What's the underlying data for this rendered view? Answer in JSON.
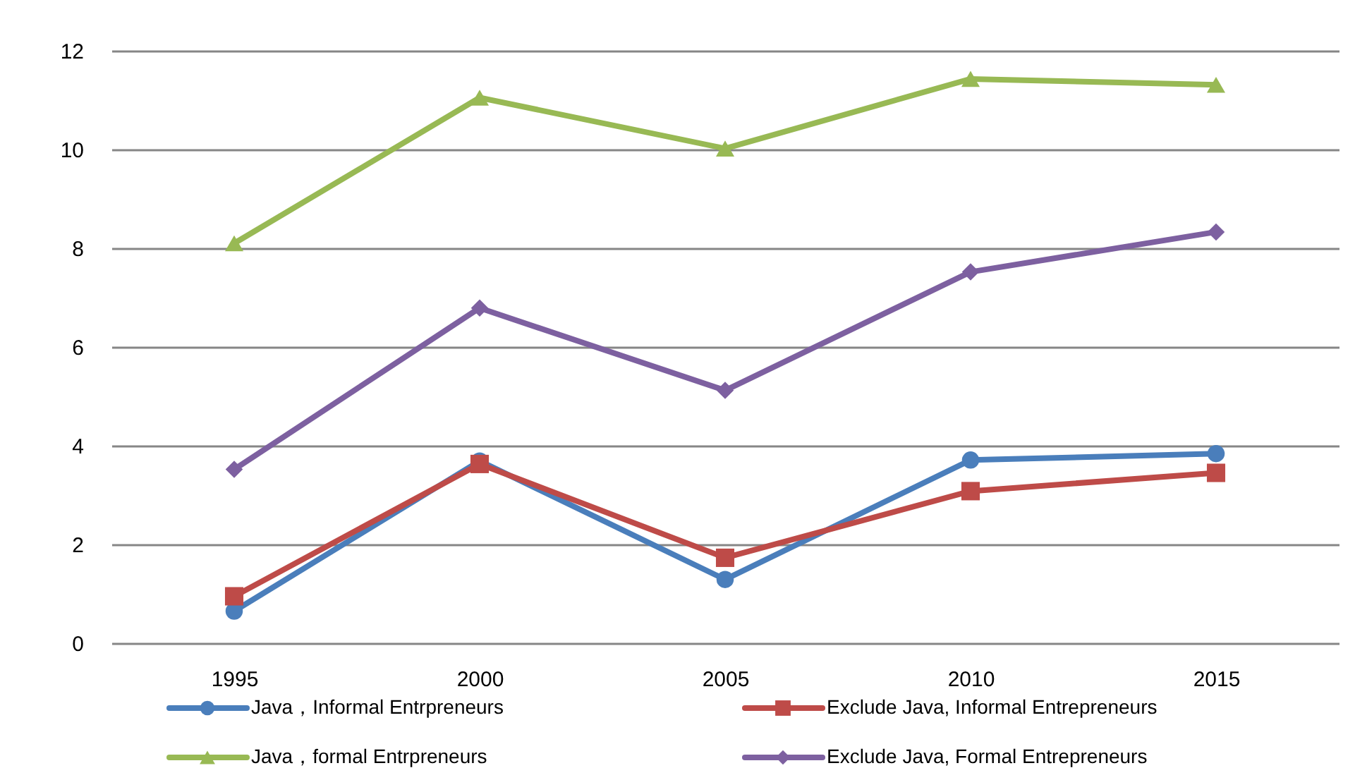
{
  "chart_data": {
    "type": "line",
    "categories": [
      "1995",
      "2000",
      "2005",
      "2010",
      "2015"
    ],
    "series": [
      {
        "name": "Java，Informal Entrpreneurs",
        "color": "#4a7ebb",
        "marker": "circle",
        "values": [
          0.65,
          3.69,
          1.29,
          3.71,
          3.84
        ]
      },
      {
        "name": "Exclude Java, Informal Entrepreneurs",
        "color": "#be4b48",
        "marker": "square",
        "values": [
          0.95,
          3.63,
          1.73,
          3.08,
          3.45
        ]
      },
      {
        "name": "Java，formal Entrpreneurs",
        "color": "#98b954",
        "marker": "triangle",
        "values": [
          8.1,
          11.05,
          10.02,
          11.43,
          11.31
        ]
      },
      {
        "name": "Exclude Java, Formal Entrepreneurs",
        "color": "#7d60a0",
        "marker": "diamond",
        "values": [
          3.52,
          6.79,
          5.12,
          7.52,
          8.33
        ]
      }
    ],
    "ylim": [
      0,
      12
    ],
    "yticks": [
      0,
      2,
      4,
      6,
      8,
      10,
      12
    ],
    "grid": "y",
    "legend": "bottom"
  }
}
